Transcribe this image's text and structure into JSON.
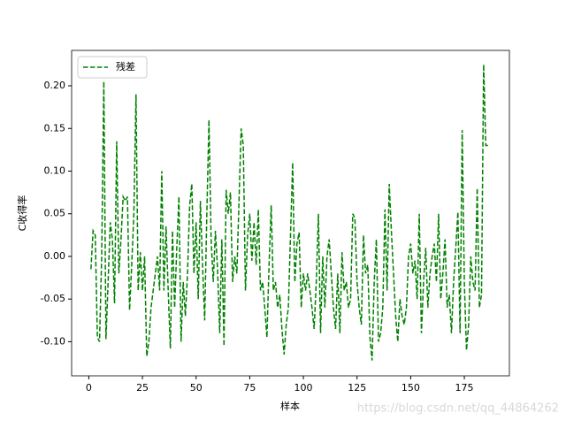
{
  "chart_data": {
    "type": "line",
    "xlabel": "样本",
    "ylabel": "C收得率",
    "legend": "upper left",
    "watermark": "https://blog.csdn.net/qq_44864262",
    "xlim": [
      -8,
      196
    ],
    "ylim": [
      -0.14,
      0.2415
    ],
    "xticks": [
      0,
      25,
      50,
      75,
      100,
      125,
      150,
      175
    ],
    "yticks": [
      {
        "value": -0.1,
        "label": "-0.10"
      },
      {
        "value": -0.05,
        "label": "-0.05"
      },
      {
        "value": 0,
        "label": "0.00"
      },
      {
        "value": 0.05,
        "label": "0.05"
      },
      {
        "value": 0.1,
        "label": "0.10"
      },
      {
        "value": 0.15,
        "label": "0.15"
      },
      {
        "value": 0.2,
        "label": "0.20"
      }
    ],
    "x": [
      1,
      2,
      3,
      4,
      5,
      6,
      7,
      8,
      9,
      10,
      11,
      12,
      13,
      14,
      15,
      16,
      17,
      18,
      19,
      20,
      21,
      22,
      23,
      24,
      25,
      26,
      27,
      28,
      29,
      30,
      31,
      32,
      33,
      34,
      35,
      36,
      37,
      38,
      39,
      40,
      41,
      42,
      43,
      44,
      45,
      46,
      47,
      48,
      49,
      50,
      51,
      52,
      53,
      54,
      55,
      56,
      57,
      58,
      59,
      60,
      61,
      62,
      63,
      64,
      65,
      66,
      67,
      68,
      69,
      70,
      71,
      72,
      73,
      74,
      75,
      76,
      77,
      78,
      79,
      80,
      81,
      82,
      83,
      84,
      85,
      86,
      87,
      88,
      89,
      90,
      91,
      92,
      93,
      94,
      95,
      96,
      97,
      98,
      99,
      100,
      101,
      102,
      103,
      104,
      105,
      106,
      107,
      108,
      109,
      110,
      111,
      112,
      113,
      114,
      115,
      116,
      117,
      118,
      119,
      120,
      121,
      122,
      123,
      124,
      125,
      126,
      127,
      128,
      129,
      130,
      131,
      132,
      133,
      134,
      135,
      136,
      137,
      138,
      139,
      140,
      141,
      142,
      143,
      144,
      145,
      146,
      147,
      148,
      149,
      150,
      151,
      152,
      153,
      154,
      155,
      156,
      157,
      158,
      159,
      160,
      161,
      162,
      163,
      164,
      165,
      166,
      167,
      168,
      169,
      170,
      171,
      172,
      173,
      174,
      175,
      176,
      177,
      178,
      179,
      180,
      181,
      182,
      183,
      184,
      185,
      186
    ],
    "series": [
      {
        "name": "残差",
        "color": "#008000",
        "values": [
          -0.015,
          0.03,
          0.025,
          -0.095,
          -0.1,
          0.0,
          0.205,
          -0.097,
          -0.03,
          0.04,
          0.02,
          -0.055,
          0.135,
          -0.02,
          0.02,
          0.07,
          0.065,
          0.07,
          -0.063,
          -0.01,
          0.05,
          0.19,
          -0.04,
          0.005,
          -0.04,
          0.0,
          -0.117,
          -0.1,
          -0.06,
          -0.04,
          -0.02,
          0.0,
          -0.04,
          0.1,
          -0.04,
          0.035,
          -0.04,
          -0.108,
          0.03,
          -0.06,
          0.01,
          0.07,
          -0.1,
          -0.03,
          -0.07,
          -0.02,
          0.06,
          0.085,
          -0.02,
          0.04,
          -0.05,
          0.065,
          -0.01,
          -0.075,
          0.05,
          0.16,
          0.02,
          -0.03,
          0.03,
          -0.015,
          -0.09,
          0.02,
          -0.105,
          0.078,
          0.05,
          0.075,
          -0.03,
          0.0,
          -0.02,
          0.065,
          0.15,
          0.13,
          -0.04,
          0.025,
          0.05,
          -0.005,
          0.04,
          -0.01,
          0.055,
          -0.04,
          -0.03,
          -0.06,
          -0.095,
          -0.01,
          0.06,
          -0.04,
          -0.03,
          -0.06,
          -0.045,
          -0.085,
          -0.115,
          -0.08,
          -0.06,
          0.025,
          0.11,
          -0.03,
          0.015,
          0.028,
          -0.06,
          -0.02,
          -0.04,
          -0.02,
          -0.04,
          -0.06,
          -0.085,
          -0.03,
          0.05,
          -0.09,
          0.0,
          -0.06,
          0.0,
          0.02,
          -0.02,
          -0.06,
          -0.085,
          -0.02,
          -0.09,
          0.005,
          -0.04,
          -0.03,
          -0.06,
          -0.05,
          0.05,
          0.045,
          -0.03,
          -0.06,
          -0.08,
          0.025,
          -0.02,
          -0.01,
          -0.095,
          -0.122,
          -0.03,
          0.02,
          -0.1,
          -0.09,
          -0.06,
          0.055,
          -0.04,
          0.085,
          0.03,
          -0.02,
          -0.07,
          -0.1,
          -0.05,
          -0.07,
          -0.08,
          -0.06,
          0.0,
          0.015,
          -0.02,
          -0.005,
          -0.05,
          0.05,
          -0.09,
          -0.03,
          0.01,
          -0.06,
          -0.02,
          0.0,
          0.015,
          -0.03,
          0.05,
          -0.05,
          -0.02,
          0.02,
          -0.06,
          -0.045,
          -0.09,
          -0.03,
          0.01,
          0.052,
          -0.09,
          0.148,
          -0.03,
          -0.11,
          -0.08,
          0.0,
          -0.03,
          -0.04,
          0.08,
          -0.06,
          -0.045,
          0.225,
          0.13,
          0.13
        ]
      }
    ]
  }
}
